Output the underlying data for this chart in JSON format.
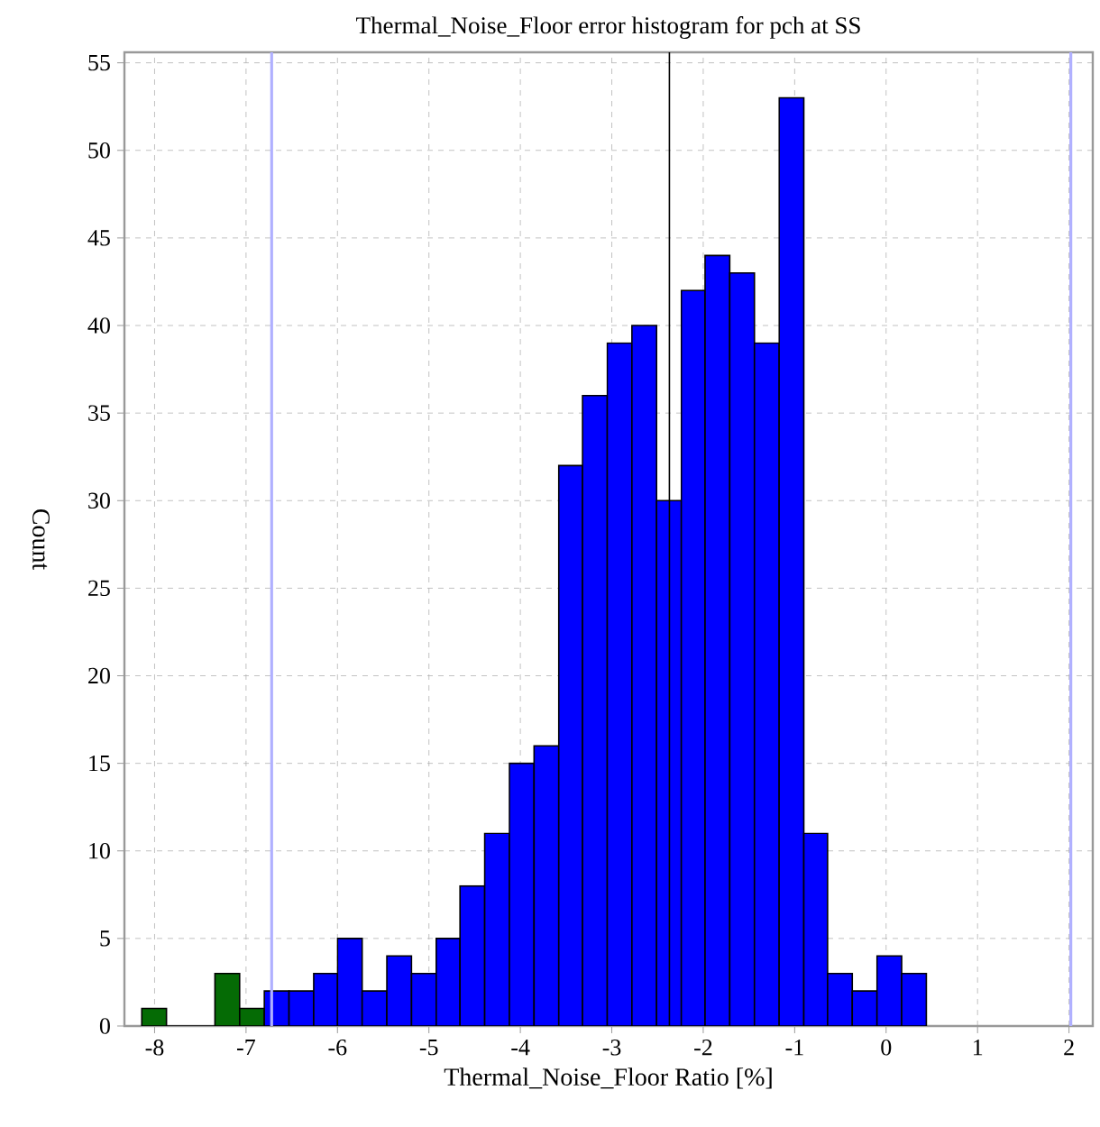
{
  "chart_data": {
    "type": "histogram",
    "title": "Thermal_Noise_Floor error histogram for pch at SS",
    "xlabel": "Thermal_Noise_Floor Ratio [%]",
    "ylabel": "Count",
    "bins": [
      -8.14,
      -7.87,
      -7.34,
      -7.07,
      -6.8,
      -6.53,
      -6.26,
      -6.0,
      -5.73,
      -5.46,
      -5.19,
      -4.92,
      -4.66,
      -4.39,
      -4.12,
      -3.85,
      -3.58,
      -3.32,
      -3.05,
      -2.78,
      -2.51,
      -2.24,
      -1.98,
      -1.71,
      -1.44,
      -1.17,
      -0.9,
      -0.64,
      -0.37,
      -0.1,
      0.17,
      0.44
    ],
    "values": [
      1,
      0,
      3,
      1,
      2,
      2,
      3,
      5,
      2,
      4,
      3,
      5,
      8,
      11,
      15,
      16,
      32,
      36,
      39,
      40,
      30,
      42,
      44,
      43,
      39,
      53,
      11,
      3,
      2,
      4,
      3
    ],
    "colors": [
      "#056b05",
      "#056b05",
      "#056b05",
      "#056b05",
      "#0000ff",
      "#0000ff",
      "#0000ff",
      "#0000ff",
      "#0000ff",
      "#0000ff",
      "#0000ff",
      "#0000ff",
      "#0000ff",
      "#0000ff",
      "#0000ff",
      "#0000ff",
      "#0000ff",
      "#0000ff",
      "#0000ff",
      "#0000ff",
      "#0000ff",
      "#0000ff",
      "#0000ff",
      "#0000ff",
      "#0000ff",
      "#0000ff",
      "#0000ff",
      "#0000ff",
      "#0000ff",
      "#0000ff",
      "#0000ff"
    ],
    "xlim": [
      -8.33,
      2.26
    ],
    "ylim": [
      0,
      55.6
    ],
    "xticks": [
      -8,
      -7,
      -6,
      -5,
      -4,
      -3,
      -2,
      -1,
      0,
      1,
      2
    ],
    "yticks": [
      0,
      5,
      10,
      15,
      20,
      25,
      30,
      35,
      40,
      45,
      50,
      55
    ],
    "grid": true,
    "ref_lines": [
      {
        "axis": "x",
        "value": -6.72,
        "color": "#b0b0ff"
      },
      {
        "axis": "x",
        "value": 2.02,
        "color": "#b0b0ff"
      },
      {
        "axis": "x",
        "value": -2.37,
        "color": "#000000"
      }
    ]
  }
}
